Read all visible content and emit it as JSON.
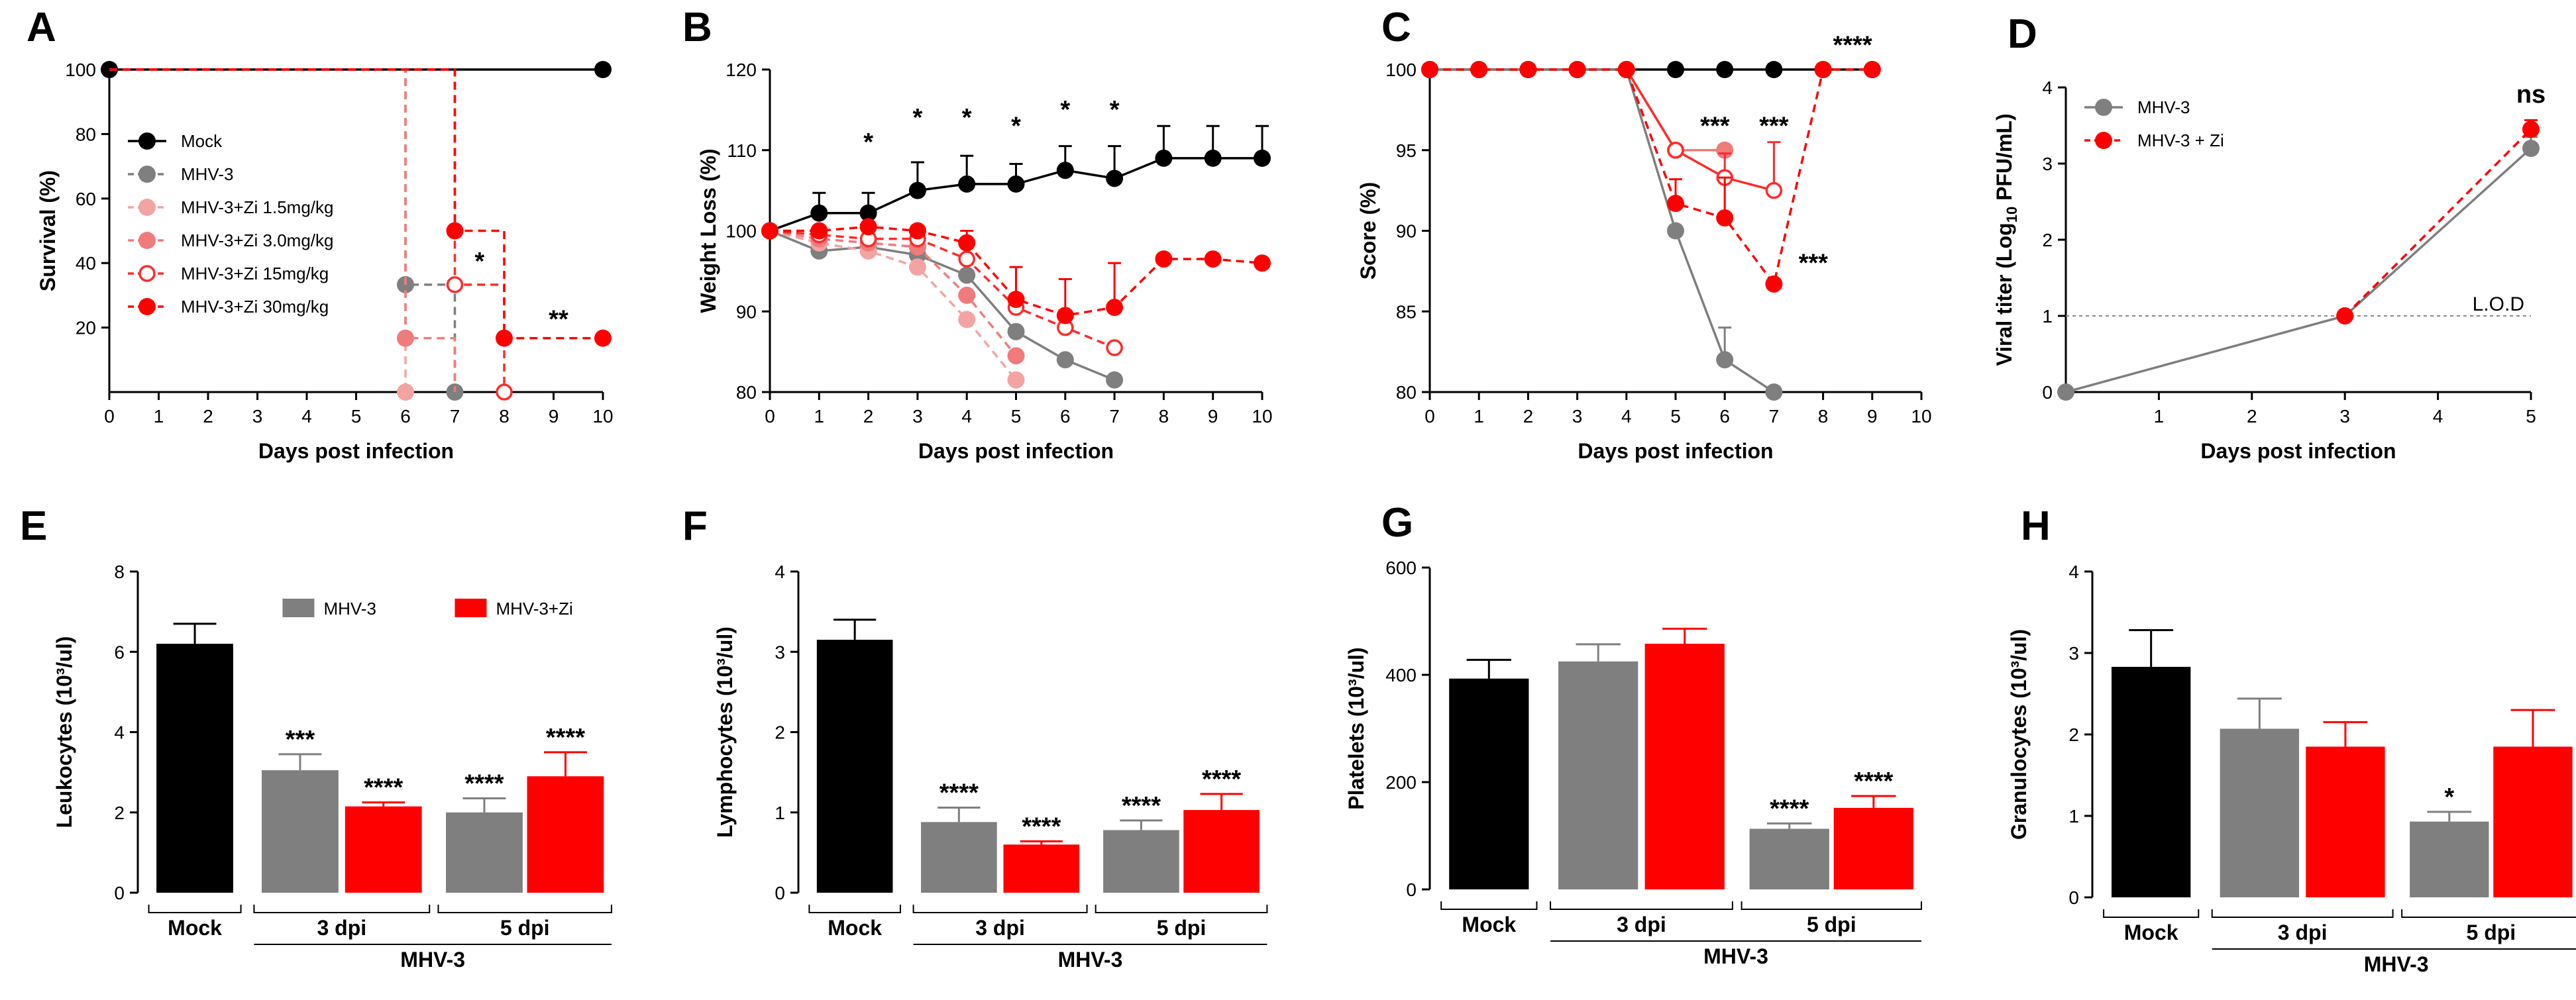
{
  "chart_data": [
    {
      "panel": "A",
      "type": "line",
      "title": "",
      "xlabel": "Days post infection",
      "ylabel": "Survival (%)",
      "xlim": [
        0,
        10
      ],
      "ylim": [
        0,
        100
      ],
      "xticks": [
        "0",
        "1",
        "2",
        "3",
        "4",
        "5",
        "6",
        "7",
        "8",
        "9",
        "10"
      ],
      "yticks": [
        "20",
        "40",
        "60",
        "80",
        "100"
      ],
      "series": [
        {
          "name": "Mock",
          "color": "#000000",
          "dash": false,
          "marker": "filled",
          "x": [
            0,
            10
          ],
          "y": [
            100,
            100
          ],
          "step": true
        },
        {
          "name": "MHV-3",
          "color": "#7f7f7f",
          "dash": true,
          "marker": "filled",
          "x": [
            0,
            6,
            6,
            7,
            7
          ],
          "y": [
            100,
            100,
            33.3,
            33.3,
            0
          ],
          "step": true,
          "markers_x": [
            6,
            7
          ],
          "markers_y": [
            33.3,
            0
          ]
        },
        {
          "name": "MHV-3+Zi 1.5mg/kg",
          "color": "#f4a3a3",
          "dash": true,
          "marker": "filled",
          "x": [
            0,
            6,
            6
          ],
          "y": [
            100,
            100,
            0
          ],
          "step": true,
          "markers_x": [
            6
          ],
          "markers_y": [
            0
          ]
        },
        {
          "name": "MHV-3+Zi 3.0mg/kg",
          "color": "#f07b7b",
          "dash": true,
          "marker": "filled",
          "x": [
            0,
            6,
            6,
            7,
            7
          ],
          "y": [
            100,
            100,
            16.7,
            16.7,
            0
          ],
          "step": true,
          "markers_x": [
            6
          ],
          "markers_y": [
            16.7
          ]
        },
        {
          "name": "MHV-3+Zi 15mg/kg",
          "color": "#ff2a2a",
          "dash": true,
          "marker": "open",
          "x": [
            0,
            7,
            7,
            8,
            8
          ],
          "y": [
            100,
            100,
            33.3,
            33.3,
            0
          ],
          "step": true,
          "markers_x": [
            7,
            8
          ],
          "markers_y": [
            33.3,
            0
          ]
        },
        {
          "name": "MHV-3+Zi 30mg/kg",
          "color": "#ff0000",
          "dash": true,
          "marker": "filled",
          "x": [
            0,
            7,
            7,
            8,
            8,
            10
          ],
          "y": [
            100,
            100,
            50,
            50,
            16.7,
            16.7
          ],
          "step": true,
          "markers_x": [
            7,
            8,
            10
          ],
          "markers_y": [
            50,
            16.7,
            16.7
          ]
        }
      ],
      "annotations": [
        {
          "text": "*",
          "x": 7.5,
          "y": 38
        },
        {
          "text": "**",
          "x": 9.1,
          "y": 20
        }
      ],
      "legend": "top-left"
    },
    {
      "panel": "B",
      "type": "line",
      "title": "",
      "xlabel": "Days post infection",
      "ylabel": "Weight Loss (%)",
      "xlim": [
        0,
        10
      ],
      "ylim": [
        80,
        120
      ],
      "xticks": [
        "0",
        "1",
        "2",
        "3",
        "4",
        "5",
        "6",
        "7",
        "8",
        "9",
        "10"
      ],
      "yticks": [
        "80",
        "90",
        "100",
        "110",
        "120"
      ],
      "series": [
        {
          "name": "Mock",
          "color": "#000000",
          "dash": false,
          "marker": "filled",
          "x": [
            0,
            1,
            2,
            3,
            4,
            5,
            6,
            7,
            8,
            9,
            10
          ],
          "y": [
            100,
            102.2,
            102.2,
            105,
            105.8,
            105.8,
            107.5,
            106.5,
            109,
            109,
            109
          ],
          "err": [
            0,
            2.5,
            2.5,
            3.5,
            3.5,
            2.5,
            3,
            4,
            4,
            4,
            4
          ]
        },
        {
          "name": "MHV-3",
          "color": "#7f7f7f",
          "dash": false,
          "marker": "filled",
          "x": [
            0,
            1,
            2,
            3,
            4,
            5,
            6,
            7
          ],
          "y": [
            100,
            97.5,
            98,
            97,
            94.5,
            87.5,
            84,
            81.5
          ]
        },
        {
          "name": "MHV-3+Zi 1.5mg/kg",
          "color": "#f4a3a3",
          "dash": true,
          "marker": "filled",
          "x": [
            0,
            1,
            2,
            3,
            4,
            5
          ],
          "y": [
            100,
            98.5,
            97.5,
            95.5,
            89,
            81.5
          ]
        },
        {
          "name": "MHV-3+Zi 3.0mg/kg",
          "color": "#f07b7b",
          "dash": true,
          "marker": "filled",
          "x": [
            0,
            1,
            2,
            3,
            4,
            5
          ],
          "y": [
            100,
            99,
            98.5,
            98,
            92,
            84.5
          ]
        },
        {
          "name": "MHV-3+Zi 15mg/kg",
          "color": "#ff2a2a",
          "dash": true,
          "marker": "open",
          "x": [
            0,
            1,
            2,
            3,
            4,
            5,
            6,
            7
          ],
          "y": [
            100,
            99.5,
            99,
            99,
            96.5,
            90.5,
            88,
            85.5
          ]
        },
        {
          "name": "MHV-3+Zi 30mg/kg",
          "color": "#ff0000",
          "dash": true,
          "marker": "filled",
          "x": [
            0,
            1,
            2,
            3,
            4,
            5,
            6,
            7,
            8,
            9,
            10
          ],
          "y": [
            100,
            100,
            100.5,
            100,
            98.5,
            91.5,
            89.5,
            90.5,
            96.5,
            96.5,
            96
          ],
          "err": [
            0,
            0,
            0,
            0,
            1.5,
            4,
            4.5,
            5.5,
            0,
            0,
            0
          ]
        }
      ],
      "annotations": [
        {
          "text": "*",
          "x": 2,
          "y": 110
        },
        {
          "text": "*",
          "x": 3,
          "y": 113
        },
        {
          "text": "*",
          "x": 4,
          "y": 113
        },
        {
          "text": "*",
          "x": 5,
          "y": 112
        },
        {
          "text": "*",
          "x": 6,
          "y": 114
        },
        {
          "text": "*",
          "x": 7,
          "y": 114
        }
      ]
    },
    {
      "panel": "C",
      "type": "line",
      "title": "",
      "xlabel": "Days post infection",
      "ylabel": "Score (%)",
      "xlim": [
        0,
        10
      ],
      "ylim": [
        80,
        100
      ],
      "xticks": [
        "0",
        "1",
        "2",
        "3",
        "4",
        "5",
        "6",
        "7",
        "8",
        "9",
        "10"
      ],
      "yticks": [
        "80",
        "85",
        "90",
        "95",
        "100"
      ],
      "series": [
        {
          "name": "Mock",
          "color": "#000000",
          "dash": false,
          "marker": "filled",
          "x": [
            0,
            1,
            2,
            3,
            4,
            5,
            6,
            7,
            8,
            9
          ],
          "y": [
            100,
            100,
            100,
            100,
            100,
            100,
            100,
            100,
            100,
            100
          ]
        },
        {
          "name": "MHV-3",
          "color": "#7f7f7f",
          "dash": false,
          "marker": "filled",
          "x": [
            0,
            1,
            2,
            3,
            4,
            5,
            6,
            7
          ],
          "y": [
            100,
            100,
            100,
            100,
            100,
            90,
            82,
            80
          ],
          "err": [
            0,
            0,
            0,
            0,
            0,
            0,
            2,
            0
          ]
        },
        {
          "name": "MHV-3+Zi 3.0mg/kg",
          "color": "#f07b7b",
          "dash": false,
          "marker": "filled",
          "x": [
            4,
            5,
            6
          ],
          "y": [
            100,
            95,
            95
          ]
        },
        {
          "name": "MHV-3+Zi 15mg/kg",
          "color": "#ff2a2a",
          "dash": false,
          "marker": "open",
          "x": [
            4,
            5,
            6,
            7
          ],
          "y": [
            100,
            95,
            93.3,
            92.5
          ],
          "err": [
            0,
            0,
            1.5,
            3
          ]
        },
        {
          "name": "MHV-3+Zi 30mg/kg",
          "color": "#ff0000",
          "dash": true,
          "marker": "filled",
          "x": [
            0,
            1,
            2,
            3,
            4,
            5,
            6,
            7,
            8,
            9
          ],
          "y": [
            100,
            100,
            100,
            100,
            100,
            91.7,
            90.8,
            86.7,
            100,
            100
          ],
          "err": [
            0,
            0,
            0,
            0,
            0,
            1.5,
            2.5,
            0,
            0,
            0
          ]
        }
      ],
      "annotations": [
        {
          "text": "***",
          "x": 5.8,
          "y": 96
        },
        {
          "text": "***",
          "x": 7.0,
          "y": 96
        },
        {
          "text": "***",
          "x": 7.8,
          "y": 87.5
        },
        {
          "text": "****",
          "x": 8.6,
          "y": 101
        }
      ]
    },
    {
      "panel": "D",
      "type": "line",
      "title": "",
      "xlabel": "Days post infection",
      "ylabel": "Viral titer (Log10 PFU/mL)",
      "xlim": [
        0,
        5
      ],
      "ylim": [
        0,
        4
      ],
      "xticks": [
        "1",
        "2",
        "3",
        "4",
        "5"
      ],
      "yticks": [
        "0",
        "1",
        "2",
        "3",
        "4"
      ],
      "series": [
        {
          "name": "MHV-3",
          "color": "#7f7f7f",
          "dash": false,
          "marker": "filled",
          "x": [
            0,
            3,
            5
          ],
          "y": [
            0,
            1,
            3.2
          ],
          "err": [
            0,
            0,
            0.15
          ]
        },
        {
          "name": "MHV-3 + Zi",
          "color": "#ff0000",
          "dash": true,
          "marker": "filled",
          "x": [
            3,
            5
          ],
          "y": [
            1,
            3.45
          ],
          "err": [
            0,
            0.12
          ]
        }
      ],
      "reference_line": {
        "y": 1,
        "label": "L.O.D"
      },
      "annotations": [
        {
          "text": "ns",
          "x": 5,
          "y": 3.8
        }
      ],
      "legend": "top-left"
    },
    {
      "panel": "E",
      "type": "bar",
      "title": "",
      "ylabel": "Leukocytes (10³/ul)",
      "ylim": [
        0,
        8
      ],
      "yticks": [
        "0",
        "2",
        "4",
        "6",
        "8"
      ],
      "categories": [
        "Mock",
        "MHV-3 3 dpi",
        "MHV-3+Zi 3 dpi",
        "MHV-3 5 dpi",
        "MHV-3+Zi 5 dpi"
      ],
      "values": [
        6.2,
        3.05,
        2.15,
        2.0,
        2.9
      ],
      "errors": [
        0.5,
        0.4,
        0.1,
        0.35,
        0.6
      ],
      "stars": [
        "",
        "***",
        "****",
        "****",
        "****"
      ],
      "legend_entries": [
        "MHV-3",
        "MHV-3+Zi"
      ],
      "group_labels": {
        "mock": "Mock",
        "d3": "3 dpi",
        "d5": "5 dpi",
        "virus": "MHV-3"
      }
    },
    {
      "panel": "F",
      "type": "bar",
      "title": "",
      "ylabel": "Lymphocytes (10³/ul)",
      "ylim": [
        0,
        4
      ],
      "yticks": [
        "0",
        "1",
        "2",
        "3",
        "4"
      ],
      "categories": [
        "Mock",
        "MHV-3 3 dpi",
        "MHV-3+Zi 3 dpi",
        "MHV-3 5 dpi",
        "MHV-3+Zi 5 dpi"
      ],
      "values": [
        3.15,
        0.88,
        0.6,
        0.78,
        1.03
      ],
      "errors": [
        0.25,
        0.18,
        0.04,
        0.12,
        0.2
      ],
      "stars": [
        "",
        "****",
        "****",
        "****",
        "****"
      ],
      "group_labels": {
        "mock": "Mock",
        "d3": "3 dpi",
        "d5": "5 dpi",
        "virus": "MHV-3"
      }
    },
    {
      "panel": "G",
      "type": "bar",
      "title": "",
      "ylabel": "Platelets (10³/ul)",
      "ylim": [
        0,
        600
      ],
      "yticks": [
        "0",
        "200",
        "400",
        "600"
      ],
      "categories": [
        "Mock",
        "MHV-3 3 dpi",
        "MHV-3+Zi 3 dpi",
        "MHV-3 5 dpi",
        "MHV-3+Zi 5 dpi"
      ],
      "values": [
        393,
        425,
        458,
        113,
        152
      ],
      "errors": [
        35,
        32,
        28,
        10,
        22
      ],
      "stars": [
        "",
        "",
        "",
        "****",
        "****"
      ],
      "group_labels": {
        "mock": "Mock",
        "d3": "3 dpi",
        "d5": "5 dpi",
        "virus": "MHV-3"
      }
    },
    {
      "panel": "H",
      "type": "bar",
      "title": "",
      "ylabel": "Granulocytes (10³/ul)",
      "ylim": [
        0,
        4
      ],
      "yticks": [
        "0",
        "1",
        "2",
        "3",
        "4"
      ],
      "categories": [
        "Mock",
        "MHV-3 3 dpi",
        "MHV-3+Zi 3 dpi",
        "MHV-3 5 dpi",
        "MHV-3+Zi 5 dpi"
      ],
      "values": [
        2.83,
        2.07,
        1.85,
        0.93,
        1.85
      ],
      "errors": [
        0.45,
        0.37,
        0.3,
        0.12,
        0.45
      ],
      "stars": [
        "",
        "",
        "",
        "*",
        ""
      ],
      "group_labels": {
        "mock": "Mock",
        "d3": "3 dpi",
        "d5": "5 dpi",
        "virus": "MHV-3"
      }
    }
  ],
  "bar_colors": [
    "#000000",
    "#7f7f7f",
    "#ff0000",
    "#7f7f7f",
    "#ff0000"
  ]
}
